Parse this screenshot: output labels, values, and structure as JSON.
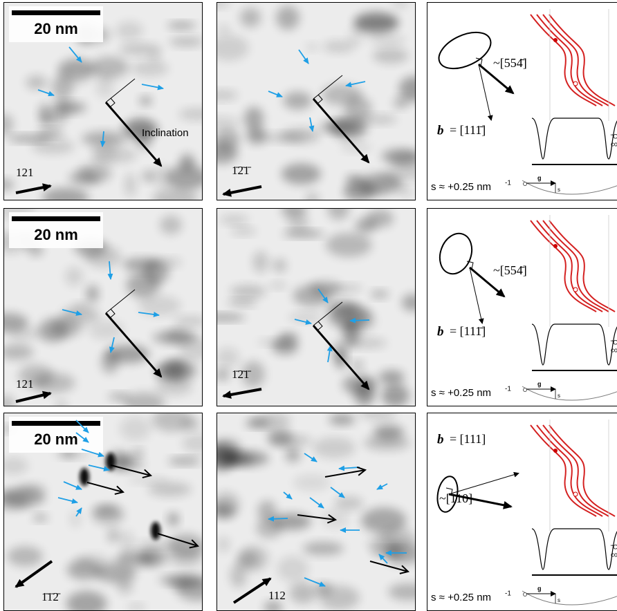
{
  "rows": [
    {
      "scale_bar": "20 nm",
      "annotation": "Inclination",
      "g_left": "121",
      "g_middle": "1̄2̄1̄",
      "diagram": {
        "direction": "~[554̄]",
        "burgers_symbol": "b",
        "burgers": "= [111̄]",
        "contrast": [
          "“Outside",
          "contrast"
        ],
        "deviation": "s ≈ +0.25 nm",
        "deviation_exp": "-1",
        "g": "g",
        "s": "s"
      }
    },
    {
      "scale_bar": "20 nm",
      "g_left": "121",
      "g_middle": "1̄2̄1̄",
      "diagram": {
        "direction": "~[554̄]",
        "burgers_symbol": "b",
        "burgers": "= [111̄]",
        "contrast": [
          "“Outside",
          "contrast"
        ],
        "deviation": "s ≈ +0.25 nm",
        "deviation_exp": "-1",
        "g": "g",
        "s": "s"
      }
    },
    {
      "scale_bar": "20 nm",
      "g_left": "1̄1̄2̄",
      "g_middle": "112",
      "diagram": {
        "direction": "~[110]",
        "burgers_symbol": "b",
        "burgers": "= [111]",
        "contrast": [
          "“Outside",
          "contrast"
        ],
        "deviation": "s ≈ +0.25 nm",
        "deviation_exp": "-1",
        "g": "g",
        "s": "s"
      }
    }
  ]
}
